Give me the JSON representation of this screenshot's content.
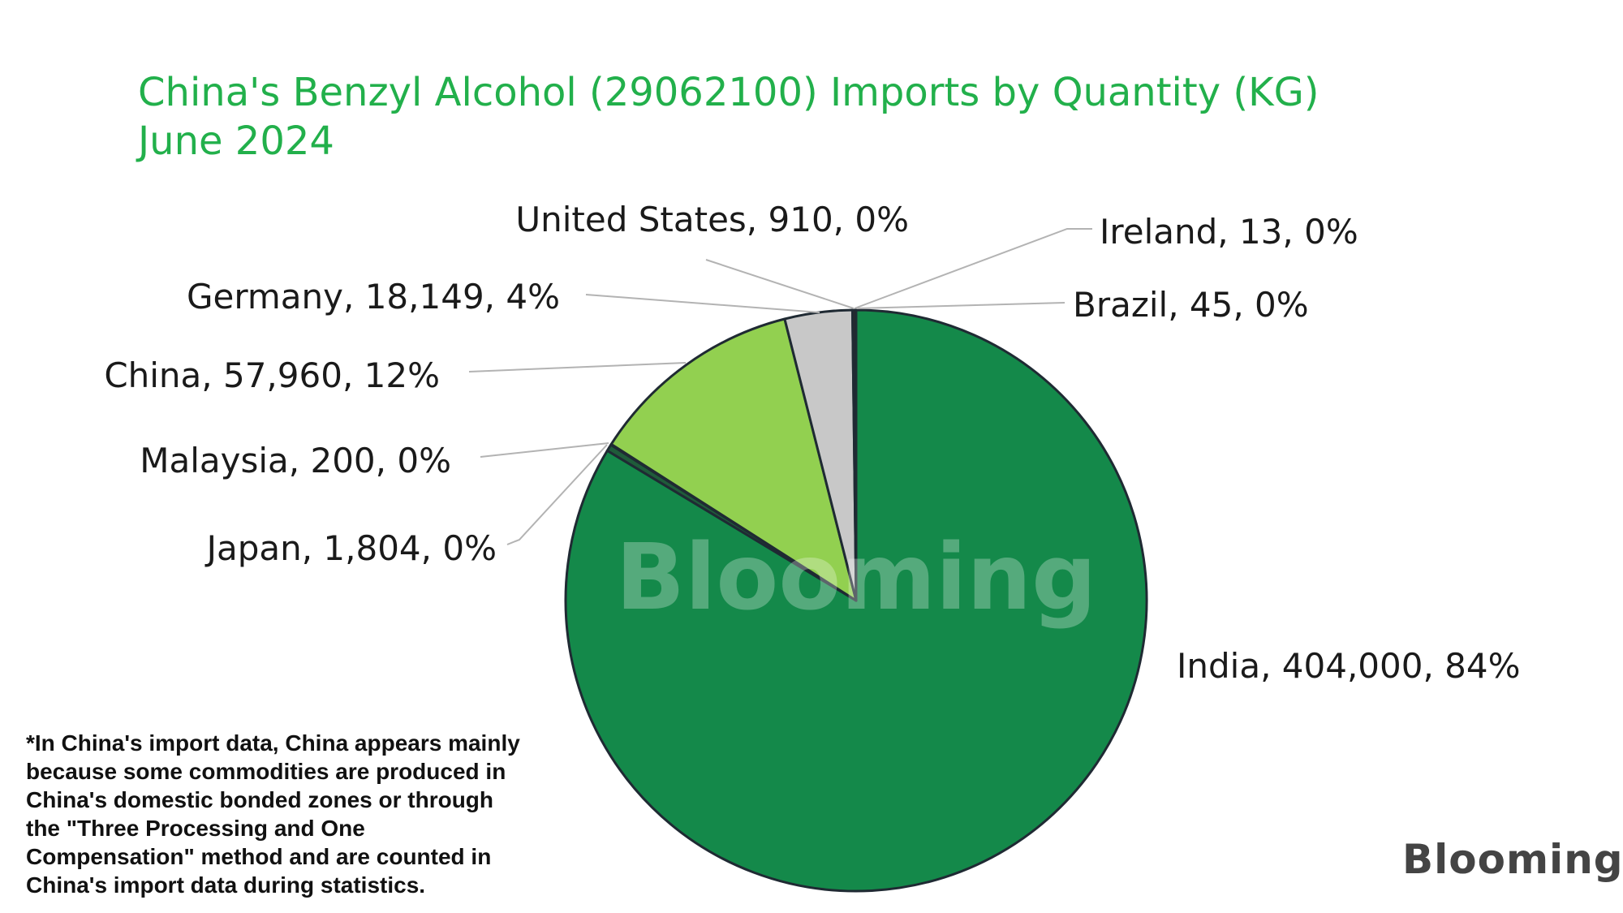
{
  "chart_data": {
    "type": "pie",
    "title_lines": [
      "China's Benzyl Alcohol (29062100) Imports by Quantity (KG)",
      "June 2024"
    ],
    "slices": [
      {
        "name": "India",
        "value": 404000,
        "percent_label": "84%",
        "label": "India, 404,000, 84%",
        "color": "#14894a"
      },
      {
        "name": "Japan",
        "value": 1804,
        "percent_label": "0%",
        "label": "Japan, 1,804, 0%",
        "color": "#1f5c3a"
      },
      {
        "name": "Malaysia",
        "value": 200,
        "percent_label": "0%",
        "label": "Malaysia, 200, 0%",
        "color": "#0e3d22"
      },
      {
        "name": "China",
        "value": 57960,
        "percent_label": "12%",
        "label": "China, 57,960, 12%",
        "color": "#92d050"
      },
      {
        "name": "Germany",
        "value": 18149,
        "percent_label": "4%",
        "label": "Germany, 18,149, 4%",
        "color": "#c8c8c8"
      },
      {
        "name": "United States",
        "value": 910,
        "percent_label": "0%",
        "label": "United States, 910, 0%",
        "color": "#2a2a2a"
      },
      {
        "name": "Ireland",
        "value": 13,
        "percent_label": "0%",
        "label": "Ireland, 13, 0%",
        "color": "#14894a"
      },
      {
        "name": "Brazil",
        "value": 45,
        "percent_label": "0%",
        "label": "Brazil, 45, 0%",
        "color": "#14894a"
      }
    ],
    "watermark": "Blooming"
  },
  "footnote_lines": [
    "*In China's import data, China appears mainly",
    "because some commodities are produced in",
    "China's domestic bonded zones or through",
    "the \"Three Processing and One",
    "Compensation\" method and are counted in",
    "China's import data during statistics."
  ],
  "brand": {
    "logo_text": "Blooming"
  },
  "colors": {
    "title": "#22b04b",
    "slice_border": "#1f2a33",
    "leader": "#b3b3b3"
  }
}
